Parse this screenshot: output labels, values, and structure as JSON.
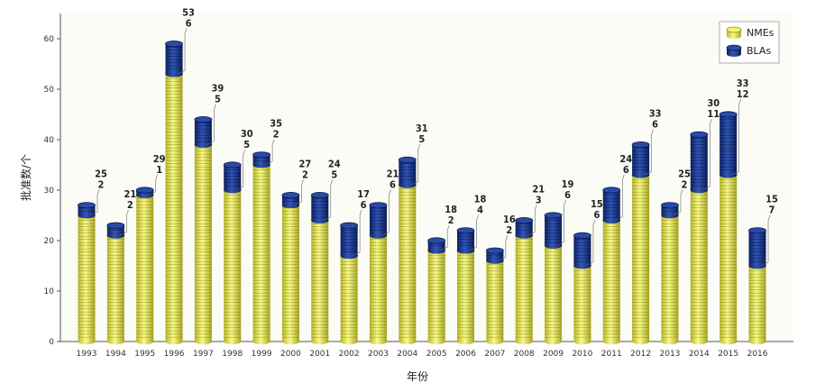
{
  "chart_data": {
    "type": "bar",
    "stacked": true,
    "xlabel": "年份",
    "ylabel": "批准数/个",
    "ylim": [
      0,
      65
    ],
    "yticks": [
      0,
      10,
      20,
      30,
      40,
      50,
      60
    ],
    "legend_position": "top-right",
    "categories": [
      "1993",
      "1994",
      "1995",
      "1996",
      "1997",
      "1998",
      "1999",
      "2000",
      "2001",
      "2002",
      "2003",
      "2004",
      "2005",
      "2006",
      "2007",
      "2008",
      "2009",
      "2010",
      "2011",
      "2012",
      "2013",
      "2014",
      "2015",
      "2016"
    ],
    "series": [
      {
        "name": "NMEs",
        "color": "#ecec55",
        "values": [
          25,
          21,
          29,
          53,
          39,
          30,
          35,
          27,
          24,
          17,
          21,
          31,
          18,
          18,
          16,
          21,
          19,
          15,
          24,
          33,
          25,
          30,
          33,
          15
        ]
      },
      {
        "name": "BLAs",
        "color": "#1c3c90",
        "values": [
          2,
          2,
          1,
          6,
          5,
          5,
          2,
          2,
          5,
          6,
          6,
          5,
          2,
          4,
          2,
          3,
          6,
          6,
          6,
          6,
          2,
          11,
          12,
          7
        ]
      }
    ],
    "data_labels": [
      [
        "25",
        "2"
      ],
      [
        "21",
        "2"
      ],
      [
        "29",
        "1"
      ],
      [
        "53",
        "6"
      ],
      [
        "39",
        "5"
      ],
      [
        "30",
        "5"
      ],
      [
        "35",
        "2"
      ],
      [
        "27",
        "2"
      ],
      [
        "24",
        "5"
      ],
      [
        "17",
        "6"
      ],
      [
        "21",
        "6"
      ],
      [
        "31",
        "5"
      ],
      [
        "18",
        "2"
      ],
      [
        "18",
        "4"
      ],
      [
        "16",
        "2"
      ],
      [
        "21",
        "3"
      ],
      [
        "19",
        "6"
      ],
      [
        "15",
        "6"
      ],
      [
        "24",
        "6"
      ],
      [
        "33",
        "6"
      ],
      [
        "25",
        "2"
      ],
      [
        "30",
        "11"
      ],
      [
        "33",
        "12"
      ],
      [
        "15",
        "7"
      ]
    ]
  }
}
